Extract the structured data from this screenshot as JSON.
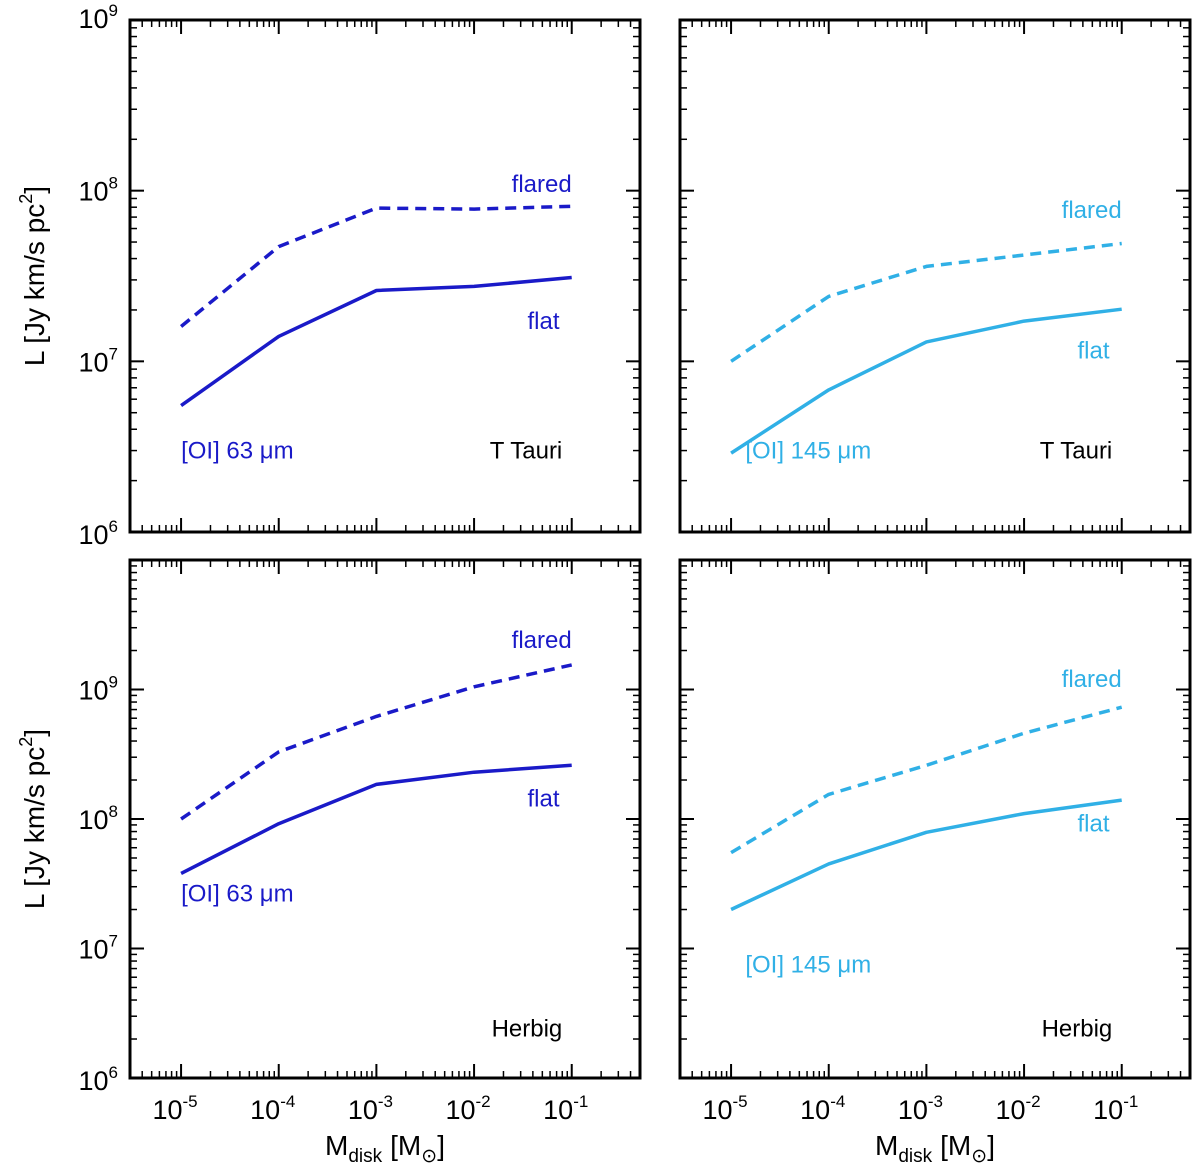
{
  "colors": {
    "dark_blue": "#1a1ac8",
    "light_blue": "#30b0e6",
    "black": "#000000"
  },
  "axis_labels": {
    "y": "L [Jy km/s pc",
    "y_sup": "2",
    "y_close": "]",
    "x_main": "M",
    "x_sub": "disk",
    "x_rest": "[M",
    "x_sun": "⊙",
    "x_close": "]"
  },
  "chart_data": [
    {
      "type": "line",
      "panel": "top-left",
      "x_scale": "log",
      "y_scale": "log",
      "xlim": [
        3e-06,
        0.5
      ],
      "ylim": [
        1000000.0,
        1000000000.0
      ],
      "x_ticks": [
        "-5",
        "-4",
        "-3",
        "-2",
        "-1"
      ],
      "y_ticks": [
        "6",
        "7",
        "8",
        "9"
      ],
      "x": [
        1e-05,
        0.0001,
        0.001,
        0.01,
        0.1
      ],
      "series": [
        {
          "name": "flared",
          "style": "dashed",
          "color": "#1a1ac8",
          "values": [
            16000000.0,
            47000000.0,
            79000000.0,
            78000000.0,
            81000000.0
          ]
        },
        {
          "name": "flat",
          "style": "solid",
          "color": "#1a1ac8",
          "values": [
            5500000.0,
            14000000.0,
            26000000.0,
            27500000.0,
            31000000.0
          ]
        }
      ],
      "annotations": [
        {
          "text": "flared",
          "color": "#1a1ac8",
          "at": [
            0.1,
            98000000.0
          ],
          "anchor": "end"
        },
        {
          "text": "flat",
          "color": "#1a1ac8",
          "at": [
            0.075,
            15500000.0
          ],
          "anchor": "end"
        },
        {
          "text": "[OI] 63 μm",
          "color": "#1a1ac8",
          "at": [
            1e-05,
            2700000.0
          ],
          "anchor": "start"
        },
        {
          "text": "T Tauri",
          "color": "#000000",
          "at": [
            0.08,
            2700000.0
          ],
          "anchor": "end"
        }
      ]
    },
    {
      "type": "line",
      "panel": "top-right",
      "x_scale": "log",
      "y_scale": "log",
      "xlim": [
        3e-06,
        0.5
      ],
      "ylim": [
        1000000.0,
        1000000000.0
      ],
      "x_ticks": [
        "-5",
        "-4",
        "-3",
        "-2",
        "-1"
      ],
      "y_ticks": [
        "6",
        "7",
        "8",
        "9"
      ],
      "x": [
        1e-05,
        0.0001,
        0.001,
        0.01,
        0.1
      ],
      "series": [
        {
          "name": "flared",
          "style": "dashed",
          "color": "#30b0e6",
          "values": [
            10000000.0,
            24000000.0,
            36000000.0,
            42000000.0,
            49000000.0
          ]
        },
        {
          "name": "flat",
          "style": "solid",
          "color": "#30b0e6",
          "values": [
            2900000.0,
            6800000.0,
            13000000.0,
            17200000.0,
            20200000.0
          ]
        }
      ],
      "annotations": [
        {
          "text": "flared",
          "color": "#30b0e6",
          "at": [
            0.1,
            69000000.0
          ],
          "anchor": "end"
        },
        {
          "text": "flat",
          "color": "#30b0e6",
          "at": [
            0.075,
            10400000.0
          ],
          "anchor": "end"
        },
        {
          "text": "[OI] 145 μm",
          "color": "#30b0e6",
          "at": [
            1.4e-05,
            2700000.0
          ],
          "anchor": "start"
        },
        {
          "text": "T Tauri",
          "color": "#000000",
          "at": [
            0.08,
            2700000.0
          ],
          "anchor": "end"
        }
      ]
    },
    {
      "type": "line",
      "panel": "bottom-left",
      "x_scale": "log",
      "y_scale": "log",
      "xlim": [
        3e-06,
        0.5
      ],
      "ylim": [
        1000000.0,
        10000000000.0
      ],
      "x_ticks": [
        "-5",
        "-4",
        "-3",
        "-2",
        "-1"
      ],
      "y_ticks": [
        "6",
        "7",
        "8",
        "9"
      ],
      "x": [
        1e-05,
        0.0001,
        0.001,
        0.01,
        0.1
      ],
      "series": [
        {
          "name": "flared",
          "style": "dashed",
          "color": "#1a1ac8",
          "values": [
            100000000.0,
            330000000.0,
            620000000.0,
            1050000000.0,
            1550000000.0
          ]
        },
        {
          "name": "flat",
          "style": "solid",
          "color": "#1a1ac8",
          "values": [
            38000000.0,
            92000000.0,
            185000000.0,
            230000000.0,
            260000000.0
          ]
        }
      ],
      "annotations": [
        {
          "text": "flared",
          "color": "#1a1ac8",
          "at": [
            0.1,
            2100000000.0
          ],
          "anchor": "end"
        },
        {
          "text": "flat",
          "color": "#1a1ac8",
          "at": [
            0.075,
            125000000.0
          ],
          "anchor": "end"
        },
        {
          "text": "[OI] 63 μm",
          "color": "#1a1ac8",
          "at": [
            1e-05,
            23000000.0
          ],
          "anchor": "start"
        },
        {
          "text": "Herbig",
          "color": "#000000",
          "at": [
            0.08,
            2100000.0
          ],
          "anchor": "end"
        }
      ]
    },
    {
      "type": "line",
      "panel": "bottom-right",
      "x_scale": "log",
      "y_scale": "log",
      "xlim": [
        3e-06,
        0.5
      ],
      "ylim": [
        1000000.0,
        10000000000.0
      ],
      "x_ticks": [
        "-5",
        "-4",
        "-3",
        "-2",
        "-1"
      ],
      "y_ticks": [
        "6",
        "7",
        "8",
        "9"
      ],
      "x": [
        1e-05,
        0.0001,
        0.001,
        0.01,
        0.1
      ],
      "series": [
        {
          "name": "flared",
          "style": "dashed",
          "color": "#30b0e6",
          "values": [
            55000000.0,
            155000000.0,
            260000000.0,
            460000000.0,
            730000000.0
          ]
        },
        {
          "name": "flat",
          "style": "solid",
          "color": "#30b0e6",
          "values": [
            20000000.0,
            45000000.0,
            79000000.0,
            110000000.0,
            140000000.0
          ]
        }
      ],
      "annotations": [
        {
          "text": "flared",
          "color": "#30b0e6",
          "at": [
            0.1,
            1050000000.0
          ],
          "anchor": "end"
        },
        {
          "text": "flat",
          "color": "#30b0e6",
          "at": [
            0.075,
            80000000.0
          ],
          "anchor": "end"
        },
        {
          "text": "[OI] 145 μm",
          "color": "#30b0e6",
          "at": [
            1.4e-05,
            6500000.0
          ],
          "anchor": "start"
        },
        {
          "text": "Herbig",
          "color": "#000000",
          "at": [
            0.08,
            2100000.0
          ],
          "anchor": "end"
        }
      ]
    }
  ]
}
